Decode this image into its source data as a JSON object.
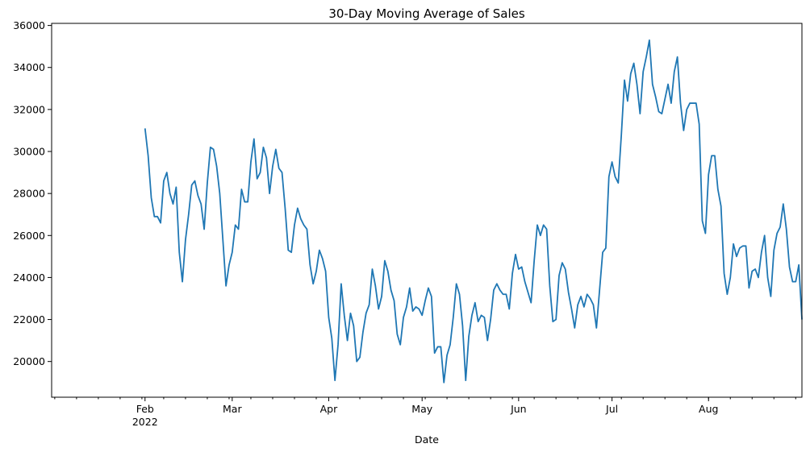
{
  "chart_data": {
    "type": "line",
    "title": "30-Day Moving Average of Sales",
    "xlabel": "Date",
    "ylabel": "",
    "xlim": [
      "2022-01-02",
      "2022-08-31"
    ],
    "ylim": [
      18300,
      36100
    ],
    "grid": false,
    "legend": "none",
    "x_ticks_major": [
      {
        "date": "2022-02-01",
        "label": "Feb",
        "sublabel": "2022"
      },
      {
        "date": "2022-03-01",
        "label": "Mar",
        "sublabel": ""
      },
      {
        "date": "2022-04-01",
        "label": "Apr",
        "sublabel": ""
      },
      {
        "date": "2022-05-01",
        "label": "May",
        "sublabel": ""
      },
      {
        "date": "2022-06-01",
        "label": "Jun",
        "sublabel": ""
      },
      {
        "date": "2022-07-01",
        "label": "Jul",
        "sublabel": ""
      },
      {
        "date": "2022-08-01",
        "label": "Aug",
        "sublabel": ""
      }
    ],
    "x_ticks_minor": [
      "2022-01-03",
      "2022-01-10",
      "2022-01-17",
      "2022-01-24",
      "2022-01-31",
      "2022-02-07",
      "2022-02-14",
      "2022-02-21",
      "2022-02-28",
      "2022-03-07",
      "2022-03-14",
      "2022-03-21",
      "2022-03-28",
      "2022-04-04",
      "2022-04-11",
      "2022-04-18",
      "2022-04-25",
      "2022-05-02",
      "2022-05-09",
      "2022-05-16",
      "2022-05-23",
      "2022-05-30",
      "2022-06-06",
      "2022-06-13",
      "2022-06-20",
      "2022-06-27",
      "2022-07-04",
      "2022-07-11",
      "2022-07-18",
      "2022-07-25",
      "2022-08-01",
      "2022-08-08",
      "2022-08-15",
      "2022-08-22",
      "2022-08-29"
    ],
    "y_ticks": [
      {
        "value": 20000,
        "label": "20000"
      },
      {
        "value": 22000,
        "label": "22000"
      },
      {
        "value": 24000,
        "label": "24000"
      },
      {
        "value": 26000,
        "label": "26000"
      },
      {
        "value": 28000,
        "label": "28000"
      },
      {
        "value": 30000,
        "label": "30000"
      },
      {
        "value": 32000,
        "label": "32000"
      },
      {
        "value": 34000,
        "label": "34000"
      },
      {
        "value": 36000,
        "label": "36000"
      }
    ],
    "series": [
      {
        "color": "#1f77b4",
        "x": [
          "2022-02-01",
          "2022-02-02",
          "2022-02-03",
          "2022-02-04",
          "2022-02-05",
          "2022-02-06",
          "2022-02-07",
          "2022-02-08",
          "2022-02-09",
          "2022-02-10",
          "2022-02-11",
          "2022-02-12",
          "2022-02-13",
          "2022-02-14",
          "2022-02-15",
          "2022-02-16",
          "2022-02-17",
          "2022-02-18",
          "2022-02-19",
          "2022-02-20",
          "2022-02-21",
          "2022-02-22",
          "2022-02-23",
          "2022-02-24",
          "2022-02-25",
          "2022-02-26",
          "2022-02-27",
          "2022-02-28",
          "2022-03-01",
          "2022-03-02",
          "2022-03-03",
          "2022-03-04",
          "2022-03-05",
          "2022-03-06",
          "2022-03-07",
          "2022-03-08",
          "2022-03-09",
          "2022-03-10",
          "2022-03-11",
          "2022-03-12",
          "2022-03-13",
          "2022-03-14",
          "2022-03-15",
          "2022-03-16",
          "2022-03-17",
          "2022-03-18",
          "2022-03-19",
          "2022-03-20",
          "2022-03-21",
          "2022-03-22",
          "2022-03-23",
          "2022-03-24",
          "2022-03-25",
          "2022-03-26",
          "2022-03-27",
          "2022-03-28",
          "2022-03-29",
          "2022-03-30",
          "2022-03-31",
          "2022-04-01",
          "2022-04-02",
          "2022-04-03",
          "2022-04-04",
          "2022-04-05",
          "2022-04-06",
          "2022-04-07",
          "2022-04-08",
          "2022-04-09",
          "2022-04-10",
          "2022-04-11",
          "2022-04-12",
          "2022-04-13",
          "2022-04-14",
          "2022-04-15",
          "2022-04-16",
          "2022-04-17",
          "2022-04-18",
          "2022-04-19",
          "2022-04-20",
          "2022-04-21",
          "2022-04-22",
          "2022-04-23",
          "2022-04-24",
          "2022-04-25",
          "2022-04-26",
          "2022-04-27",
          "2022-04-28",
          "2022-04-29",
          "2022-04-30",
          "2022-05-01",
          "2022-05-02",
          "2022-05-03",
          "2022-05-04",
          "2022-05-05",
          "2022-05-06",
          "2022-05-07",
          "2022-05-08",
          "2022-05-09",
          "2022-05-10",
          "2022-05-11",
          "2022-05-12",
          "2022-05-13",
          "2022-05-14",
          "2022-05-15",
          "2022-05-16",
          "2022-05-17",
          "2022-05-18",
          "2022-05-19",
          "2022-05-20",
          "2022-05-21",
          "2022-05-22",
          "2022-05-23",
          "2022-05-24",
          "2022-05-25",
          "2022-05-26",
          "2022-05-27",
          "2022-05-28",
          "2022-05-29",
          "2022-05-30",
          "2022-05-31",
          "2022-06-01",
          "2022-06-02",
          "2022-06-03",
          "2022-06-04",
          "2022-06-05",
          "2022-06-06",
          "2022-06-07",
          "2022-06-08",
          "2022-06-09",
          "2022-06-10",
          "2022-06-11",
          "2022-06-12",
          "2022-06-13",
          "2022-06-14",
          "2022-06-15",
          "2022-06-16",
          "2022-06-17",
          "2022-06-18",
          "2022-06-19",
          "2022-06-20",
          "2022-06-21",
          "2022-06-22",
          "2022-06-23",
          "2022-06-24",
          "2022-06-25",
          "2022-06-26",
          "2022-06-27",
          "2022-06-28",
          "2022-06-29",
          "2022-06-30",
          "2022-07-01",
          "2022-07-02",
          "2022-07-03",
          "2022-07-04",
          "2022-07-05",
          "2022-07-06",
          "2022-07-07",
          "2022-07-08",
          "2022-07-09",
          "2022-07-10",
          "2022-07-11",
          "2022-07-12",
          "2022-07-13",
          "2022-07-14",
          "2022-07-15",
          "2022-07-16",
          "2022-07-17",
          "2022-07-18",
          "2022-07-19",
          "2022-07-20",
          "2022-07-21",
          "2022-07-22",
          "2022-07-23",
          "2022-07-24",
          "2022-07-25",
          "2022-07-26",
          "2022-07-27",
          "2022-07-28",
          "2022-07-29",
          "2022-07-30",
          "2022-07-31",
          "2022-08-01",
          "2022-08-02",
          "2022-08-03",
          "2022-08-04",
          "2022-08-05",
          "2022-08-06",
          "2022-08-07",
          "2022-08-08",
          "2022-08-09",
          "2022-08-10",
          "2022-08-11",
          "2022-08-12",
          "2022-08-13",
          "2022-08-14",
          "2022-08-15",
          "2022-08-16",
          "2022-08-17",
          "2022-08-18",
          "2022-08-19",
          "2022-08-20",
          "2022-08-21",
          "2022-08-22",
          "2022-08-23",
          "2022-08-24",
          "2022-08-25",
          "2022-08-26",
          "2022-08-27",
          "2022-08-28",
          "2022-08-29",
          "2022-08-30",
          "2022-08-31"
        ],
        "values": [
          31100,
          29800,
          27800,
          26900,
          26900,
          26600,
          28600,
          29000,
          28000,
          27500,
          28300,
          25200,
          23800,
          25800,
          27000,
          28400,
          28600,
          27900,
          27500,
          26300,
          28500,
          30200,
          30100,
          29300,
          28000,
          25800,
          23600,
          24600,
          25200,
          26500,
          26300,
          28200,
          27600,
          27600,
          29500,
          30600,
          28700,
          29000,
          30200,
          29700,
          28000,
          29300,
          30100,
          29200,
          29000,
          27300,
          25300,
          25200,
          26500,
          27300,
          26800,
          26500,
          26300,
          24600,
          23700,
          24300,
          25300,
          24900,
          24300,
          22100,
          21100,
          19100,
          20800,
          23700,
          22200,
          21000,
          22300,
          21700,
          20000,
          20200,
          21400,
          22300,
          22700,
          24400,
          23600,
          22500,
          23100,
          24800,
          24300,
          23400,
          22900,
          21300,
          20800,
          22100,
          22600,
          23500,
          22400,
          22600,
          22500,
          22200,
          22900,
          23500,
          23100,
          20400,
          20700,
          20700,
          19000,
          20300,
          20800,
          22100,
          23700,
          23200,
          21700,
          19100,
          21200,
          22200,
          22800,
          21900,
          22200,
          22100,
          21000,
          22000,
          23400,
          23700,
          23400,
          23200,
          23200,
          22500,
          24200,
          25100,
          24400,
          24500,
          23800,
          23300,
          22800,
          24800,
          26500,
          26000,
          26500,
          26300,
          23600,
          21900,
          22000,
          24100,
          24700,
          24400,
          23300,
          22500,
          21600,
          22700,
          23100,
          22600,
          23200,
          23000,
          22700,
          21600,
          23400,
          25200,
          25400,
          28800,
          29500,
          28800,
          28500,
          30800,
          33400,
          32400,
          33700,
          34200,
          33200,
          31800,
          33800,
          34500,
          35300,
          33200,
          32600,
          31900,
          31800,
          32500,
          33200,
          32300,
          33800,
          34500,
          32300,
          31000,
          32000,
          32300,
          32300,
          32300,
          31300,
          26700,
          26100,
          28900,
          29800,
          29800,
          28200,
          27400,
          24200,
          23200,
          24000,
          25600,
          25000,
          25400,
          25500,
          25500,
          23500,
          24300,
          24400,
          24000,
          25200,
          26000,
          24000,
          23100,
          25300,
          26100,
          26400,
          27500,
          26300,
          24500,
          23800,
          23800,
          24600,
          22000
        ]
      }
    ]
  }
}
